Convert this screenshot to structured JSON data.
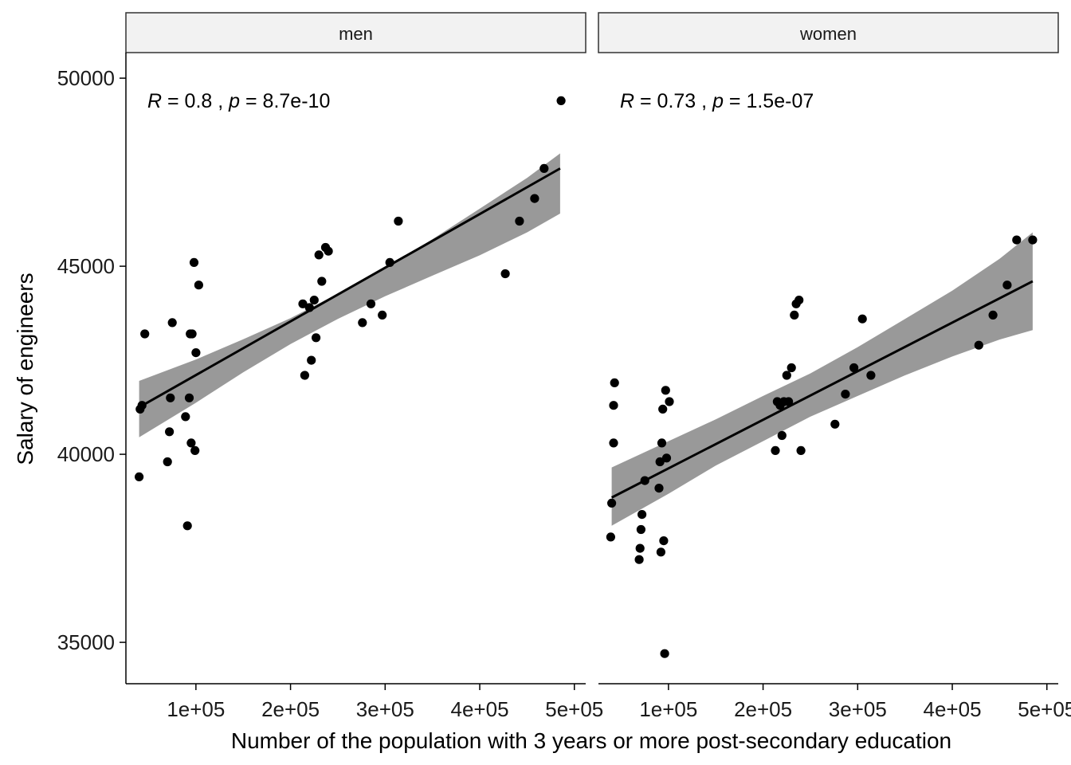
{
  "chart_data": {
    "type": "scatter",
    "xlabel": "Number of the population with 3 years or more post-secondary education",
    "ylabel": "Salary of engineers",
    "xlim": [
      26000,
      512000
    ],
    "ylim": [
      33900,
      50680
    ],
    "x_ticks": [
      100000,
      200000,
      300000,
      400000,
      500000
    ],
    "x_tick_labels": [
      "1e+05",
      "2e+05",
      "3e+05",
      "4e+05",
      "5e+05"
    ],
    "y_ticks": [
      35000,
      40000,
      45000,
      50000
    ],
    "y_tick_labels": [
      "35000",
      "40000",
      "45000",
      "50000"
    ],
    "grid": false,
    "panels": [
      {
        "strip": "men",
        "annotation": {
          "r_label": "R",
          "r_value": " = 0.8 , ",
          "p_label": "p",
          "p_value": " = 8.7e-10"
        },
        "fit": {
          "x": [
            40000,
            485000
          ],
          "y": [
            41250,
            47600
          ]
        },
        "band": {
          "x": [
            40000,
            100000,
            150000,
            200000,
            250000,
            300000,
            350000,
            400000,
            450000,
            485000
          ],
          "lower": [
            40450,
            41370,
            42180,
            42930,
            43600,
            44200,
            44750,
            45290,
            45900,
            46400
          ],
          "upper": [
            41950,
            42520,
            43060,
            43620,
            44270,
            44950,
            45720,
            46530,
            47350,
            48000
          ]
        },
        "points": {
          "x": [
            40000,
            41000,
            43000,
            46000,
            70000,
            72000,
            73000,
            75000,
            89000,
            91000,
            93000,
            94000,
            95000,
            96000,
            98000,
            99000,
            100000,
            103000,
            213000,
            215000,
            220000,
            222000,
            225000,
            227000,
            230000,
            233000,
            237000,
            240000,
            276000,
            285000,
            297000,
            305000,
            314000,
            427000,
            442000,
            458000,
            468000,
            486000
          ],
          "y": [
            39400,
            41200,
            41300,
            43200,
            39800,
            40600,
            41500,
            43500,
            41000,
            38100,
            41500,
            43200,
            40300,
            43200,
            45100,
            40100,
            42700,
            44500,
            44000,
            42100,
            43900,
            42500,
            44100,
            43100,
            45300,
            44600,
            45500,
            45400,
            43500,
            44000,
            43700,
            45100,
            46200,
            44800,
            46200,
            46800,
            47600,
            49400
          ]
        }
      },
      {
        "strip": "women",
        "annotation": {
          "r_label": "R",
          "r_value": " = 0.73 , ",
          "p_label": "p",
          "p_value": " = 1.5e-07"
        },
        "fit": {
          "x": [
            40000,
            485000
          ],
          "y": [
            38850,
            44600
          ]
        },
        "band": {
          "x": [
            40000,
            100000,
            150000,
            200000,
            250000,
            300000,
            350000,
            400000,
            450000,
            485000
          ],
          "lower": [
            38100,
            38950,
            39700,
            40350,
            41000,
            41550,
            42100,
            42600,
            43050,
            43300
          ],
          "upper": [
            39650,
            40350,
            40930,
            41550,
            42150,
            42850,
            43600,
            44350,
            45200,
            45900
          ]
        },
        "points": {
          "x": [
            39000,
            40000,
            42000,
            42000,
            43000,
            69000,
            70000,
            71000,
            72000,
            75000,
            90000,
            91000,
            92000,
            93000,
            94000,
            95000,
            96000,
            97000,
            98000,
            101000,
            213000,
            215000,
            218000,
            220000,
            222000,
            225000,
            227000,
            230000,
            233000,
            235000,
            238000,
            240000,
            276000,
            287000,
            296000,
            305000,
            314000,
            428000,
            443000,
            458000,
            468000,
            485000
          ],
          "y": [
            37800,
            38700,
            40300,
            41300,
            41900,
            37200,
            37500,
            38000,
            38400,
            39300,
            39100,
            39800,
            37400,
            40300,
            41200,
            37700,
            34700,
            41700,
            39900,
            41400,
            40100,
            41400,
            41300,
            40500,
            41400,
            42100,
            41400,
            42300,
            43700,
            44000,
            44100,
            40100,
            40800,
            41600,
            42300,
            43600,
            42100,
            42900,
            43700,
            44500,
            45700,
            45700
          ]
        }
      }
    ]
  },
  "colors": {
    "points": "#000000",
    "fit_line": "#000000",
    "ci_band": "#999999",
    "strip_fill": "#f2f2f2",
    "strip_border": "#333333"
  }
}
